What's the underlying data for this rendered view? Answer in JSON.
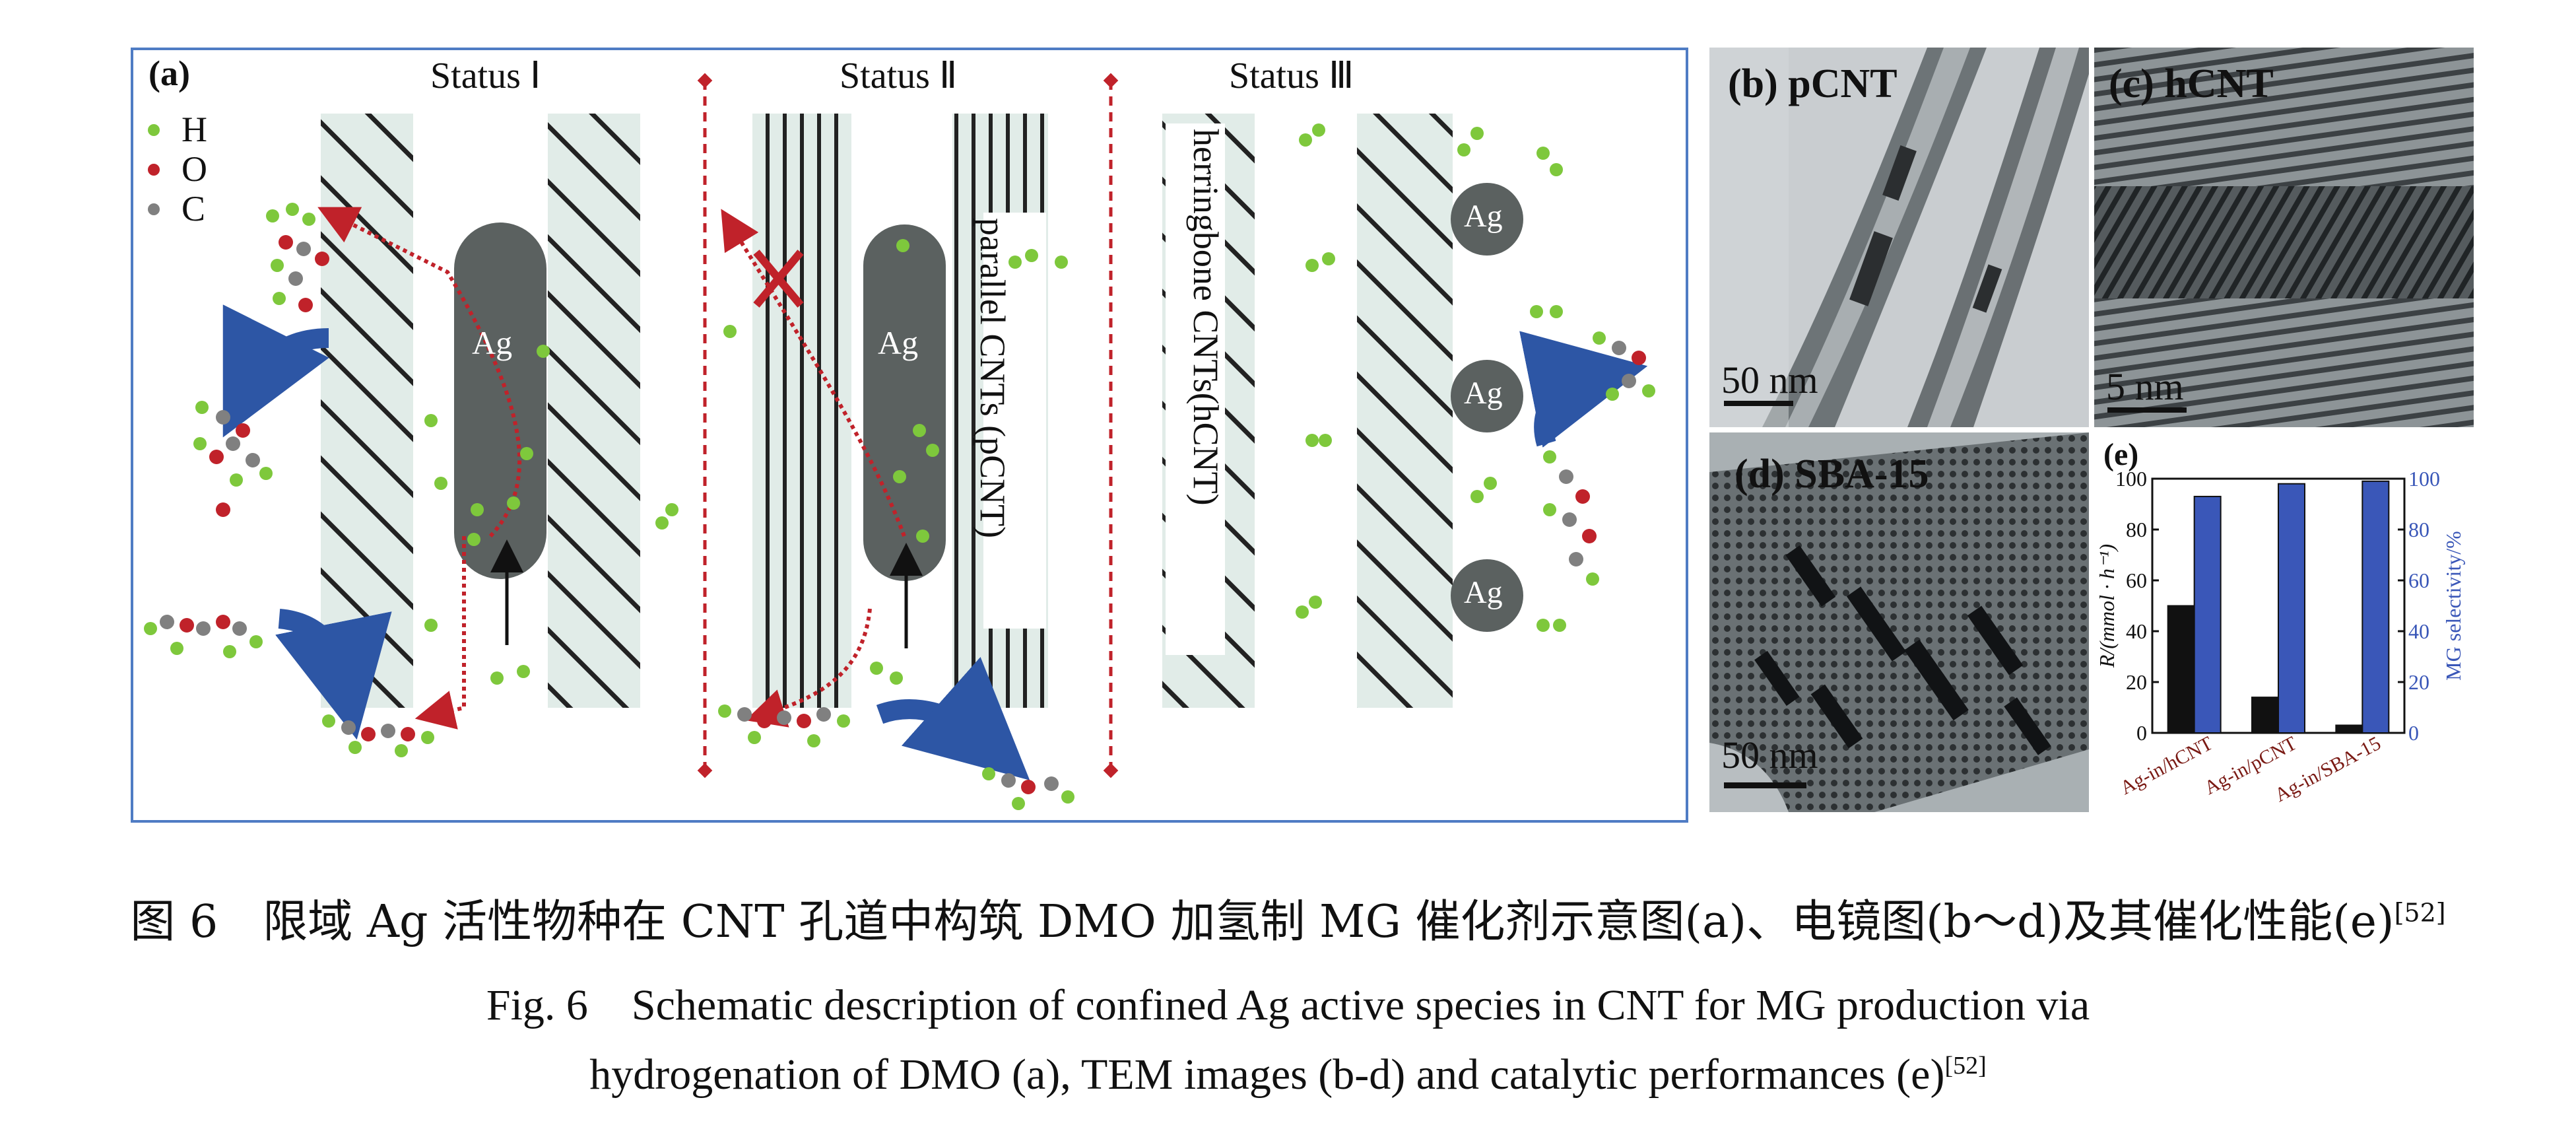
{
  "panel_a": {
    "label": "(a)",
    "status_1": "Status Ⅰ",
    "status_2": "Status Ⅱ",
    "status_3": "Status Ⅲ",
    "legend": [
      "H",
      "O",
      "C"
    ],
    "ag": "Ag",
    "parallel_label": "parallel CNTs (pCNT)",
    "herringbone_label": "herringbone CNTs(hCNT)",
    "colors": {
      "H": "#7ec83c",
      "O": "#c0222a",
      "C": "#808080",
      "frame": "#4f7cc4",
      "path": "#c0222a",
      "arrow": "#2d56a5"
    }
  },
  "panel_b": {
    "label": "(b) pCNT",
    "scale": "50 nm"
  },
  "panel_c": {
    "label": "(c) hCNT",
    "scale": "5 nm"
  },
  "panel_d": {
    "label": "(d) SBA-15",
    "scale": "50 nm"
  },
  "panel_e": {
    "label": "(e)"
  },
  "chart_data": {
    "type": "bar",
    "categories": [
      "Ag-in/hCNT",
      "Ag-in/pCNT",
      "Ag-in/SBA-15"
    ],
    "series": [
      {
        "name": "R/(mmol·h⁻¹)",
        "values": [
          50,
          14,
          3
        ],
        "color": "#111111",
        "axis": "left"
      },
      {
        "name": "MG selectivity/%",
        "values": [
          93,
          98,
          99
        ],
        "color": "#3a57b8",
        "axis": "right"
      }
    ],
    "ylabel": "R/(mmol · h⁻¹)",
    "y2label": "MG selectivity/%",
    "ylim": [
      0,
      100
    ],
    "y2lim": [
      0,
      100
    ],
    "yticks": [
      0,
      20,
      40,
      60,
      80,
      100
    ],
    "y2ticks": [
      0,
      20,
      40,
      60,
      80,
      100
    ]
  },
  "caption": {
    "cn": "图 6　限域 Ag 活性物种在 CNT 孔道中构筑 DMO 加氢制 MG 催化剂示意图(a)、电镜图(b～d)及其催化性能(e)",
    "cn_ref": "[52]",
    "en_line1": "Fig. 6　Schematic description of confined Ag active species in CNT for MG production via",
    "en_line2": "hydrogenation of DMO (a), TEM images (b-d) and catalytic performances (e)",
    "en_ref": "[52]"
  }
}
